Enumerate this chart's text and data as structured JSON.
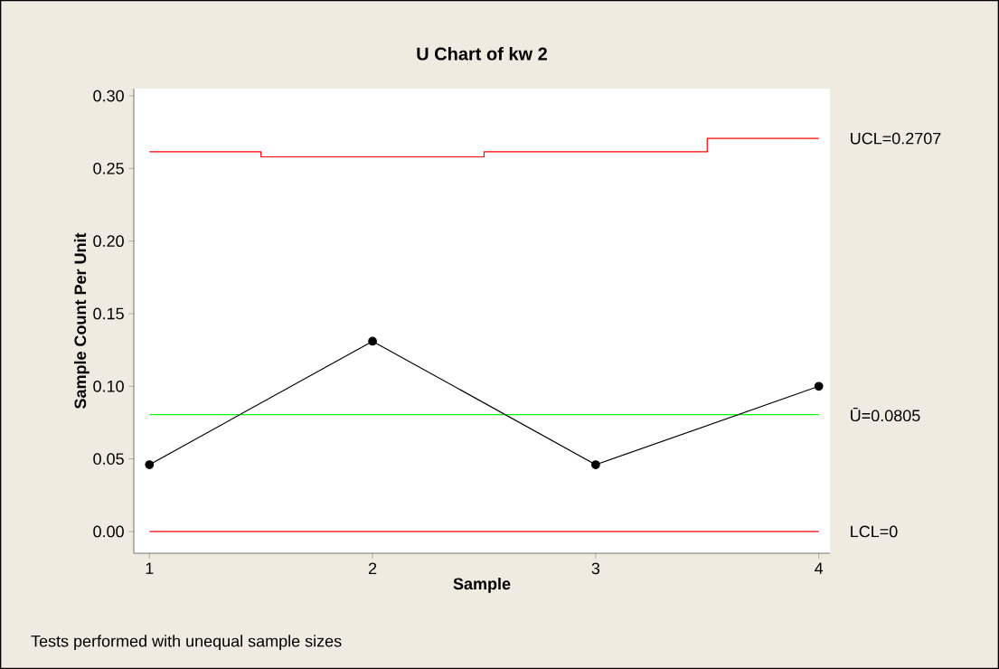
{
  "chart_data": {
    "type": "line",
    "title": "U Chart of kw 2",
    "xlabel": "Sample",
    "ylabel": "Sample Count Per Unit",
    "x": [
      1,
      2,
      3,
      4
    ],
    "series": [
      {
        "color": "#000000",
        "values": [
          0.046,
          0.131,
          0.046,
          0.1
        ]
      },
      {
        "type": "step",
        "color": "#ff0000",
        "values": [
          0.2615,
          0.258,
          0.2615,
          0.2707
        ],
        "marker": "none"
      }
    ],
    "xlim": [
      0.93,
      4.05
    ],
    "ylim": [
      -0.015,
      0.305
    ],
    "xticks": [
      1,
      2,
      3,
      4
    ],
    "yticks": [
      {
        "value": 0,
        "label": "0.00"
      },
      {
        "value": 0.05,
        "label": "0.05"
      },
      {
        "value": 0.1,
        "label": "0.10"
      },
      {
        "value": 0.15,
        "label": "0.15"
      },
      {
        "value": 0.2,
        "label": "0.20"
      },
      {
        "value": 0.25,
        "label": "0.25"
      },
      {
        "value": 0.3,
        "label": "0.30"
      }
    ],
    "ref_lines": [
      {
        "axis": "y",
        "value": 0.0805,
        "label": "Ū=0.0805",
        "color": "#00ff00"
      },
      {
        "axis": "y",
        "value": 0,
        "label": "LCL=0",
        "color": "#ff0000"
      }
    ],
    "annotations": [
      {
        "text": "UCL=0.2707",
        "x": 4,
        "y": 0.2707
      },
      "Tests performed with unequal sample sizes"
    ],
    "grid": false,
    "marker": "circle"
  }
}
